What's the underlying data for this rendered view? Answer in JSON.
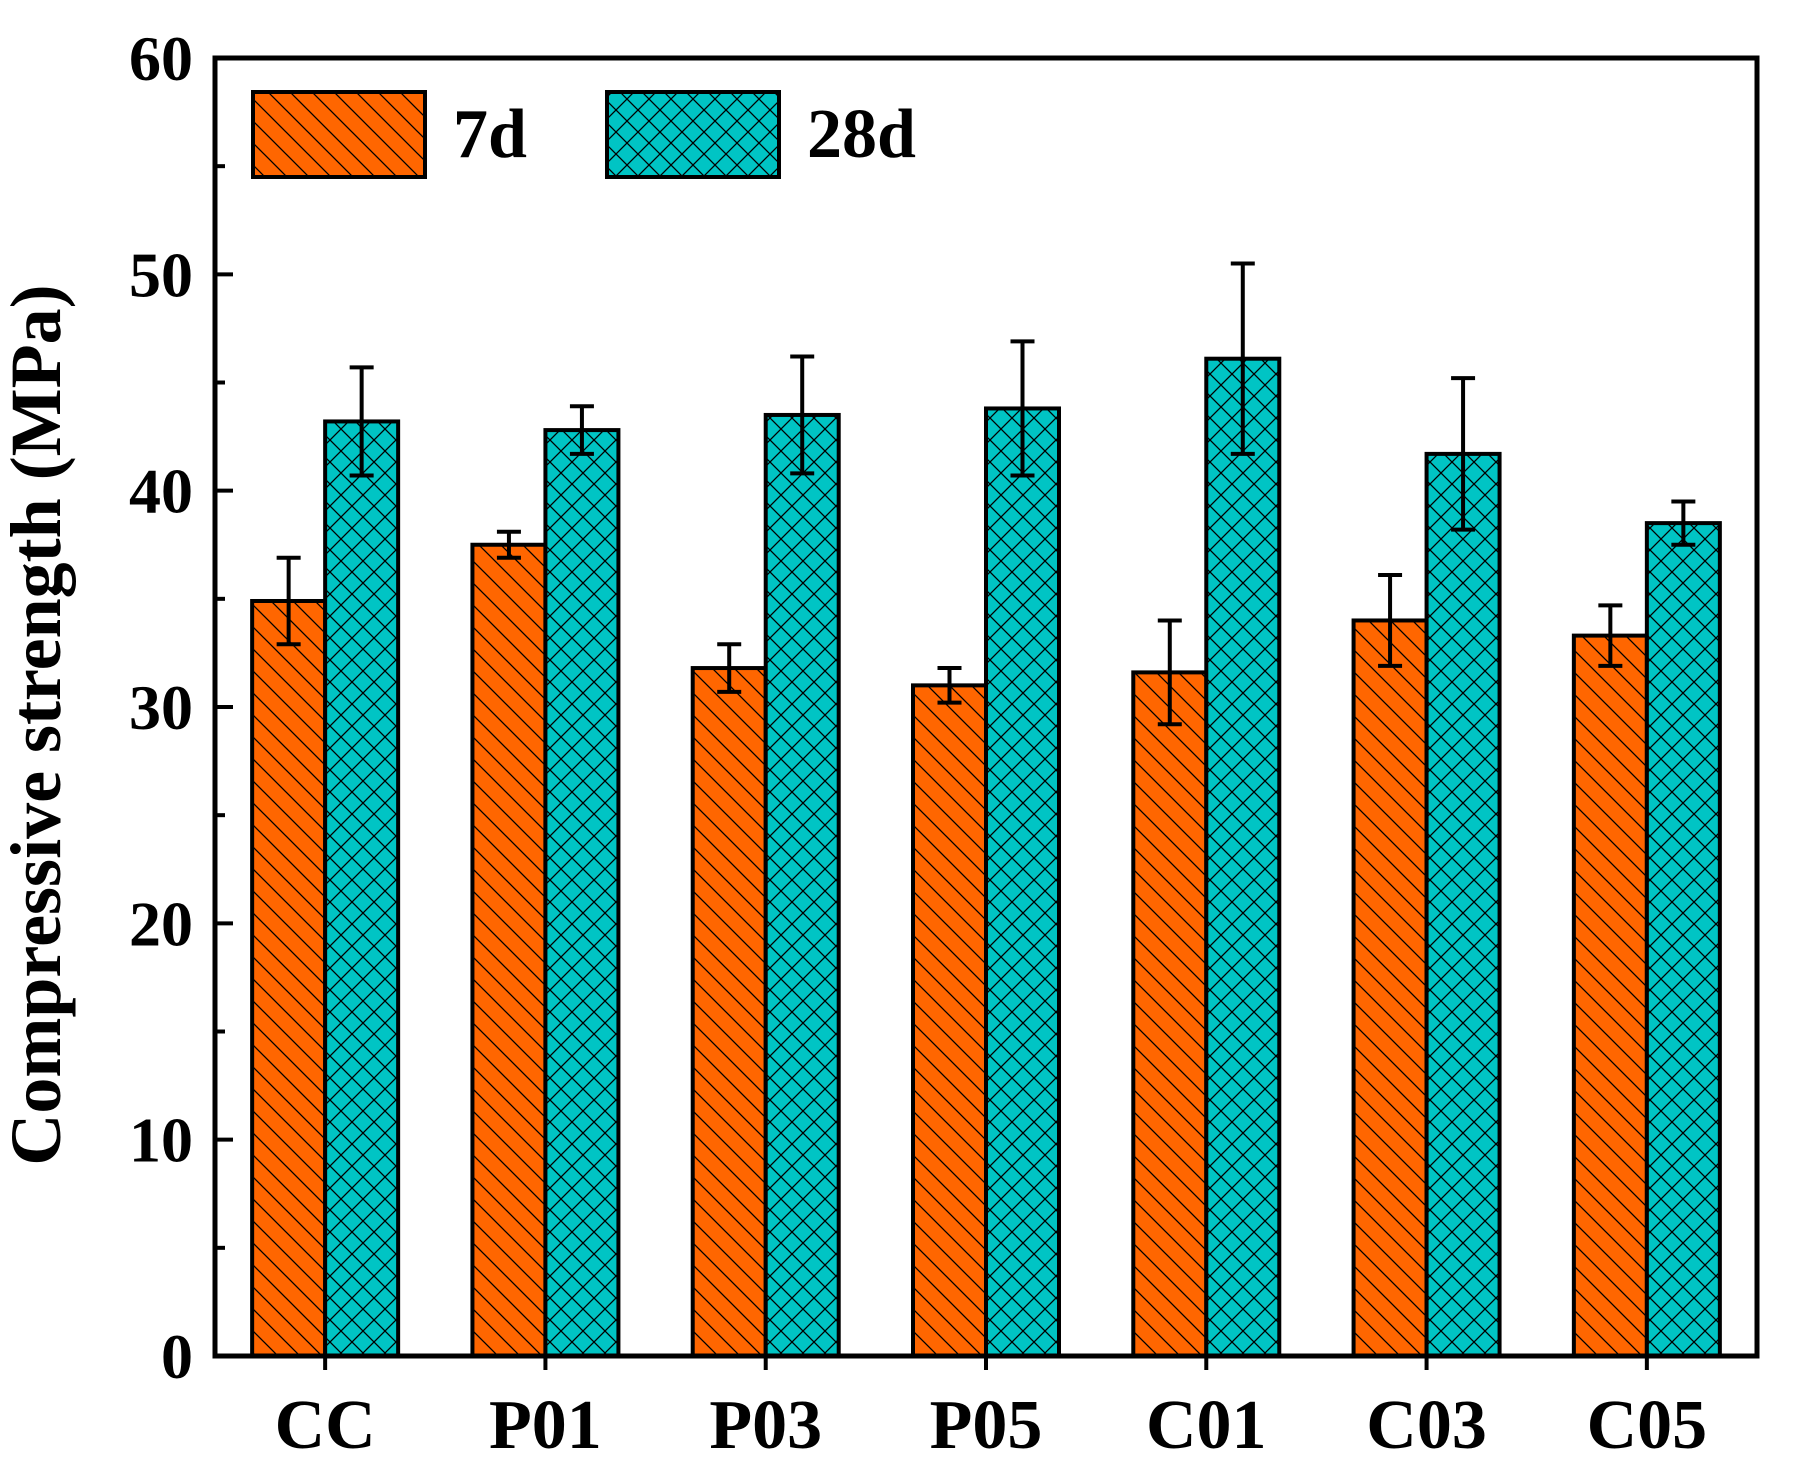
{
  "chart_data": {
    "type": "bar",
    "title": "",
    "xlabel": "",
    "ylabel": "Compressive strength (MPa)",
    "ylim": [
      0,
      60
    ],
    "yticks": [
      "0",
      "10",
      "20",
      "30",
      "40",
      "50",
      "60"
    ],
    "categories": [
      "CC",
      "P01",
      "P03",
      "P05",
      "C01",
      "C03",
      "C05"
    ],
    "legend_position": "top-left",
    "grid": false,
    "series": [
      {
        "name": "7d",
        "color": "#FF6600",
        "pattern": "diagonal-hatch",
        "values": [
          34.9,
          37.5,
          31.8,
          31.0,
          31.6,
          34.0,
          33.3
        ],
        "errors": [
          2.0,
          0.6,
          1.1,
          0.8,
          2.4,
          2.1,
          1.4
        ]
      },
      {
        "name": "28d",
        "color": "#00C4C4",
        "pattern": "cross-hatch",
        "values": [
          43.2,
          42.8,
          43.5,
          43.8,
          46.1,
          41.7,
          38.5
        ],
        "errors": [
          2.5,
          1.1,
          2.7,
          3.1,
          4.4,
          3.5,
          1.0
        ]
      }
    ]
  }
}
